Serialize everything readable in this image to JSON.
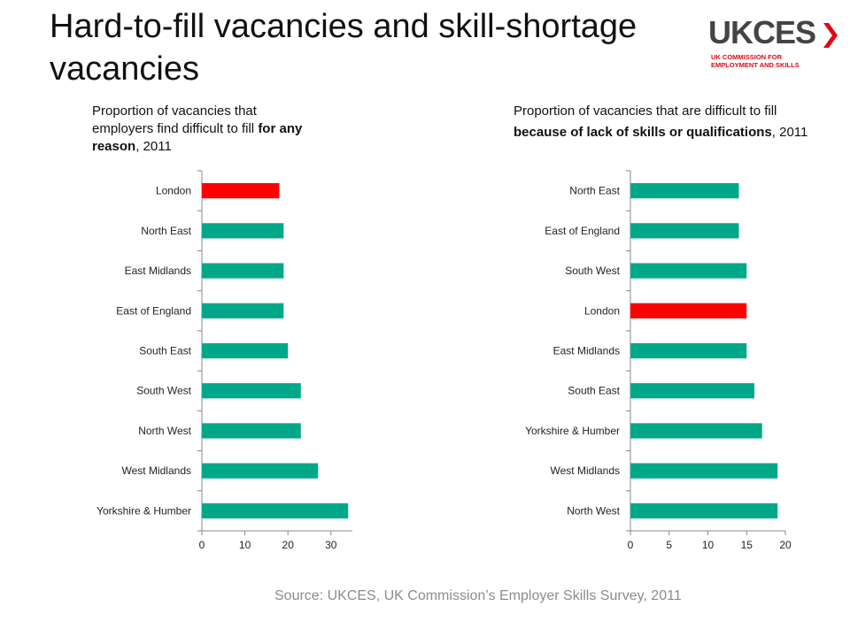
{
  "slide": {
    "title": "Hard-to-fill vacancies and skill-shortage vacancies",
    "source": "Source: UKCES, UK Commission’s Employer Skills Survey, 2011"
  },
  "logo": {
    "word": "UKCES",
    "sub_line1": "UK COMMISSION FOR",
    "sub_line2": "EMPLOYMENT AND SKILLS",
    "accent": "#e30613"
  },
  "colors": {
    "bar": "#00a88a",
    "highlight": "#ff0000",
    "axis": "#888888"
  },
  "chart_data": [
    {
      "type": "bar",
      "orientation": "horizontal",
      "title_parts": [
        "Proportion of vacancies that employers find difficult to fill ",
        "for any reason",
        ", 2011"
      ],
      "categories": [
        "London",
        "North East",
        "East Midlands",
        "East of England",
        "South East",
        "South West",
        "North West",
        "West Midlands",
        "Yorkshire & Humber"
      ],
      "values": [
        18,
        19,
        19,
        19,
        20,
        23,
        23,
        27,
        34
      ],
      "highlight": "London",
      "xlim": [
        0,
        35
      ],
      "xticks": [
        0,
        10,
        20,
        30
      ]
    },
    {
      "type": "bar",
      "orientation": "horizontal",
      "title_parts": [
        "Proportion of vacancies that are difficult to fill ",
        "because of lack of skills or qualifications",
        ", 2011"
      ],
      "categories": [
        "North East",
        "East of England",
        "South West",
        "London",
        "East Midlands",
        "South East",
        "Yorkshire & Humber",
        "West Midlands",
        "North West"
      ],
      "values": [
        14,
        14,
        15,
        15,
        15,
        16,
        17,
        19,
        19
      ],
      "highlight": "London",
      "xlim": [
        0,
        20
      ],
      "xticks": [
        0,
        5,
        10,
        15,
        20
      ]
    }
  ]
}
